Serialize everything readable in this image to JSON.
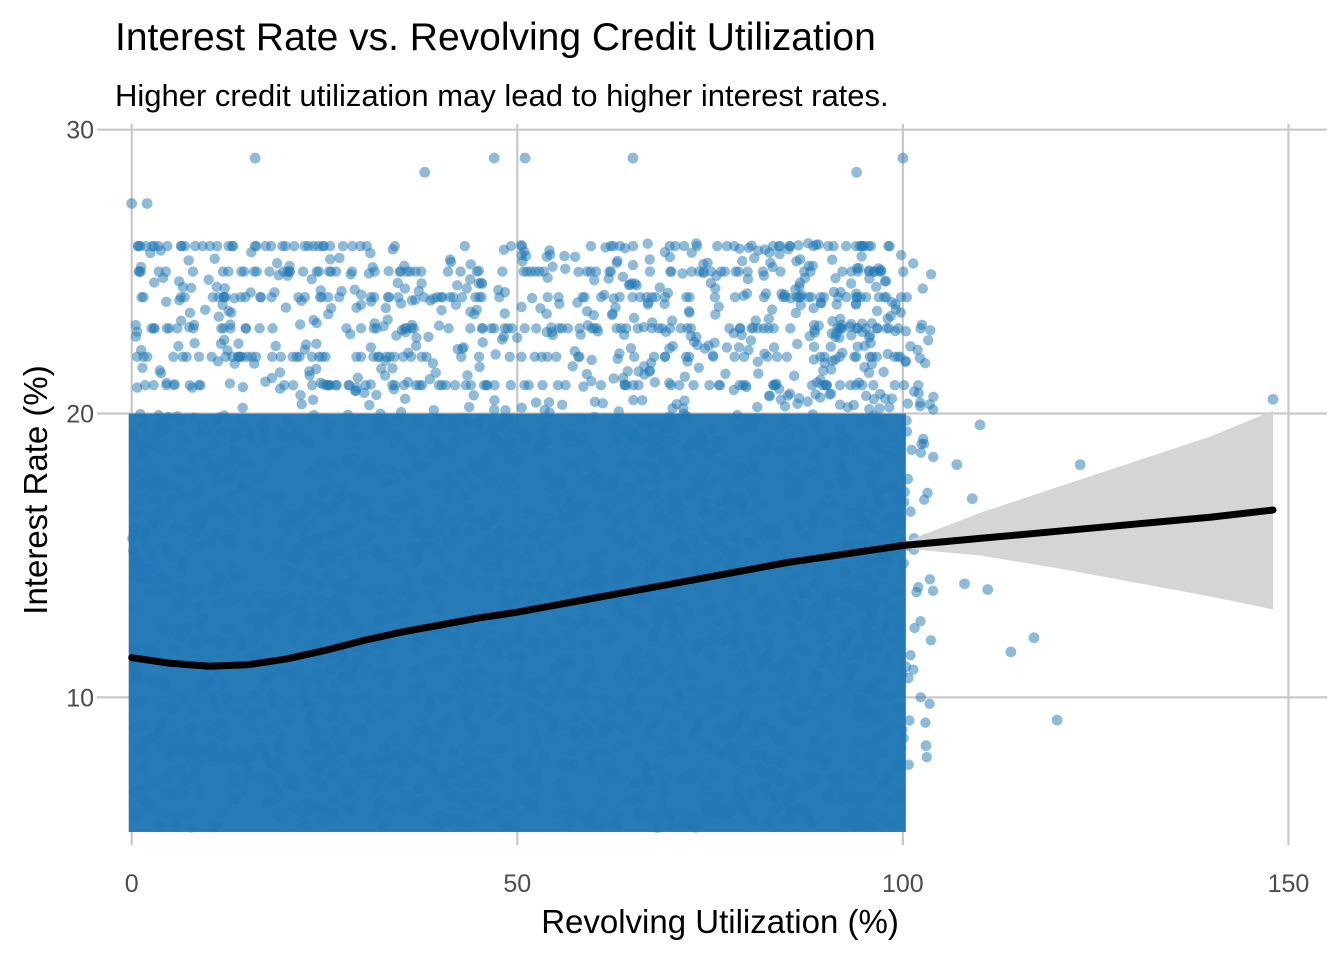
{
  "chart_data": {
    "type": "scatter",
    "title": "Interest Rate vs. Revolving Credit Utilization",
    "subtitle": "Higher credit utilization may lead to higher interest rates.",
    "xlabel": "Revolving Utilization (%)",
    "ylabel": "Interest Rate (%)",
    "xlim": [
      -4.5,
      155
    ],
    "ylim": [
      4.8,
      30.2
    ],
    "x_ticks": [
      0,
      50,
      100,
      150
    ],
    "y_ticks": [
      10,
      20,
      30
    ],
    "grid": true,
    "point_color": "#2077B4",
    "point_alpha": 0.5,
    "trend_color": "#000000",
    "ribbon_color": "#D3D3D3",
    "dense_cloud": {
      "x_range": [
        0,
        100
      ],
      "y_range": [
        5.4,
        26
      ]
    },
    "notable_points": [
      {
        "x": 148,
        "y": 20.5
      },
      {
        "x": 123,
        "y": 18.2
      },
      {
        "x": 120,
        "y": 9.2
      },
      {
        "x": 117,
        "y": 12.1
      },
      {
        "x": 114,
        "y": 11.6
      },
      {
        "x": 111,
        "y": 13.8
      },
      {
        "x": 110,
        "y": 19.6
      },
      {
        "x": 109,
        "y": 17.0
      },
      {
        "x": 108,
        "y": 14.0
      },
      {
        "x": 107,
        "y": 18.2
      },
      {
        "x": 103,
        "y": 8.3
      },
      {
        "x": 100,
        "y": 29.0
      },
      {
        "x": 65,
        "y": 29.0
      },
      {
        "x": 51,
        "y": 29.0
      },
      {
        "x": 47,
        "y": 29.0
      },
      {
        "x": 16,
        "y": 29.0
      },
      {
        "x": 0,
        "y": 27.4
      },
      {
        "x": 2,
        "y": 27.4
      },
      {
        "x": 94,
        "y": 28.5
      },
      {
        "x": 38,
        "y": 28.5
      }
    ],
    "trend": {
      "x": [
        0,
        5,
        10,
        15,
        20,
        25,
        30,
        35,
        40,
        45,
        50,
        55,
        60,
        65,
        70,
        75,
        80,
        85,
        90,
        95,
        100,
        110,
        120,
        130,
        140,
        148
      ],
      "y": [
        11.4,
        11.2,
        11.1,
        11.15,
        11.35,
        11.65,
        12.0,
        12.3,
        12.55,
        12.8,
        13.0,
        13.25,
        13.5,
        13.75,
        14.0,
        14.25,
        14.5,
        14.75,
        14.95,
        15.15,
        15.35,
        15.6,
        15.85,
        16.1,
        16.35,
        16.6
      ],
      "lower": [
        11.3,
        11.15,
        11.05,
        11.1,
        11.3,
        11.6,
        11.95,
        12.25,
        12.5,
        12.75,
        12.95,
        13.2,
        13.45,
        13.7,
        13.95,
        14.2,
        14.45,
        14.7,
        14.9,
        15.1,
        15.25,
        15.0,
        14.55,
        14.05,
        13.55,
        13.1
      ],
      "upper": [
        11.5,
        11.25,
        11.15,
        11.2,
        11.4,
        11.7,
        12.05,
        12.35,
        12.6,
        12.85,
        13.05,
        13.3,
        13.55,
        13.8,
        14.05,
        14.3,
        14.55,
        14.8,
        15.0,
        15.2,
        15.45,
        16.5,
        17.4,
        18.3,
        19.2,
        20.1
      ]
    }
  }
}
